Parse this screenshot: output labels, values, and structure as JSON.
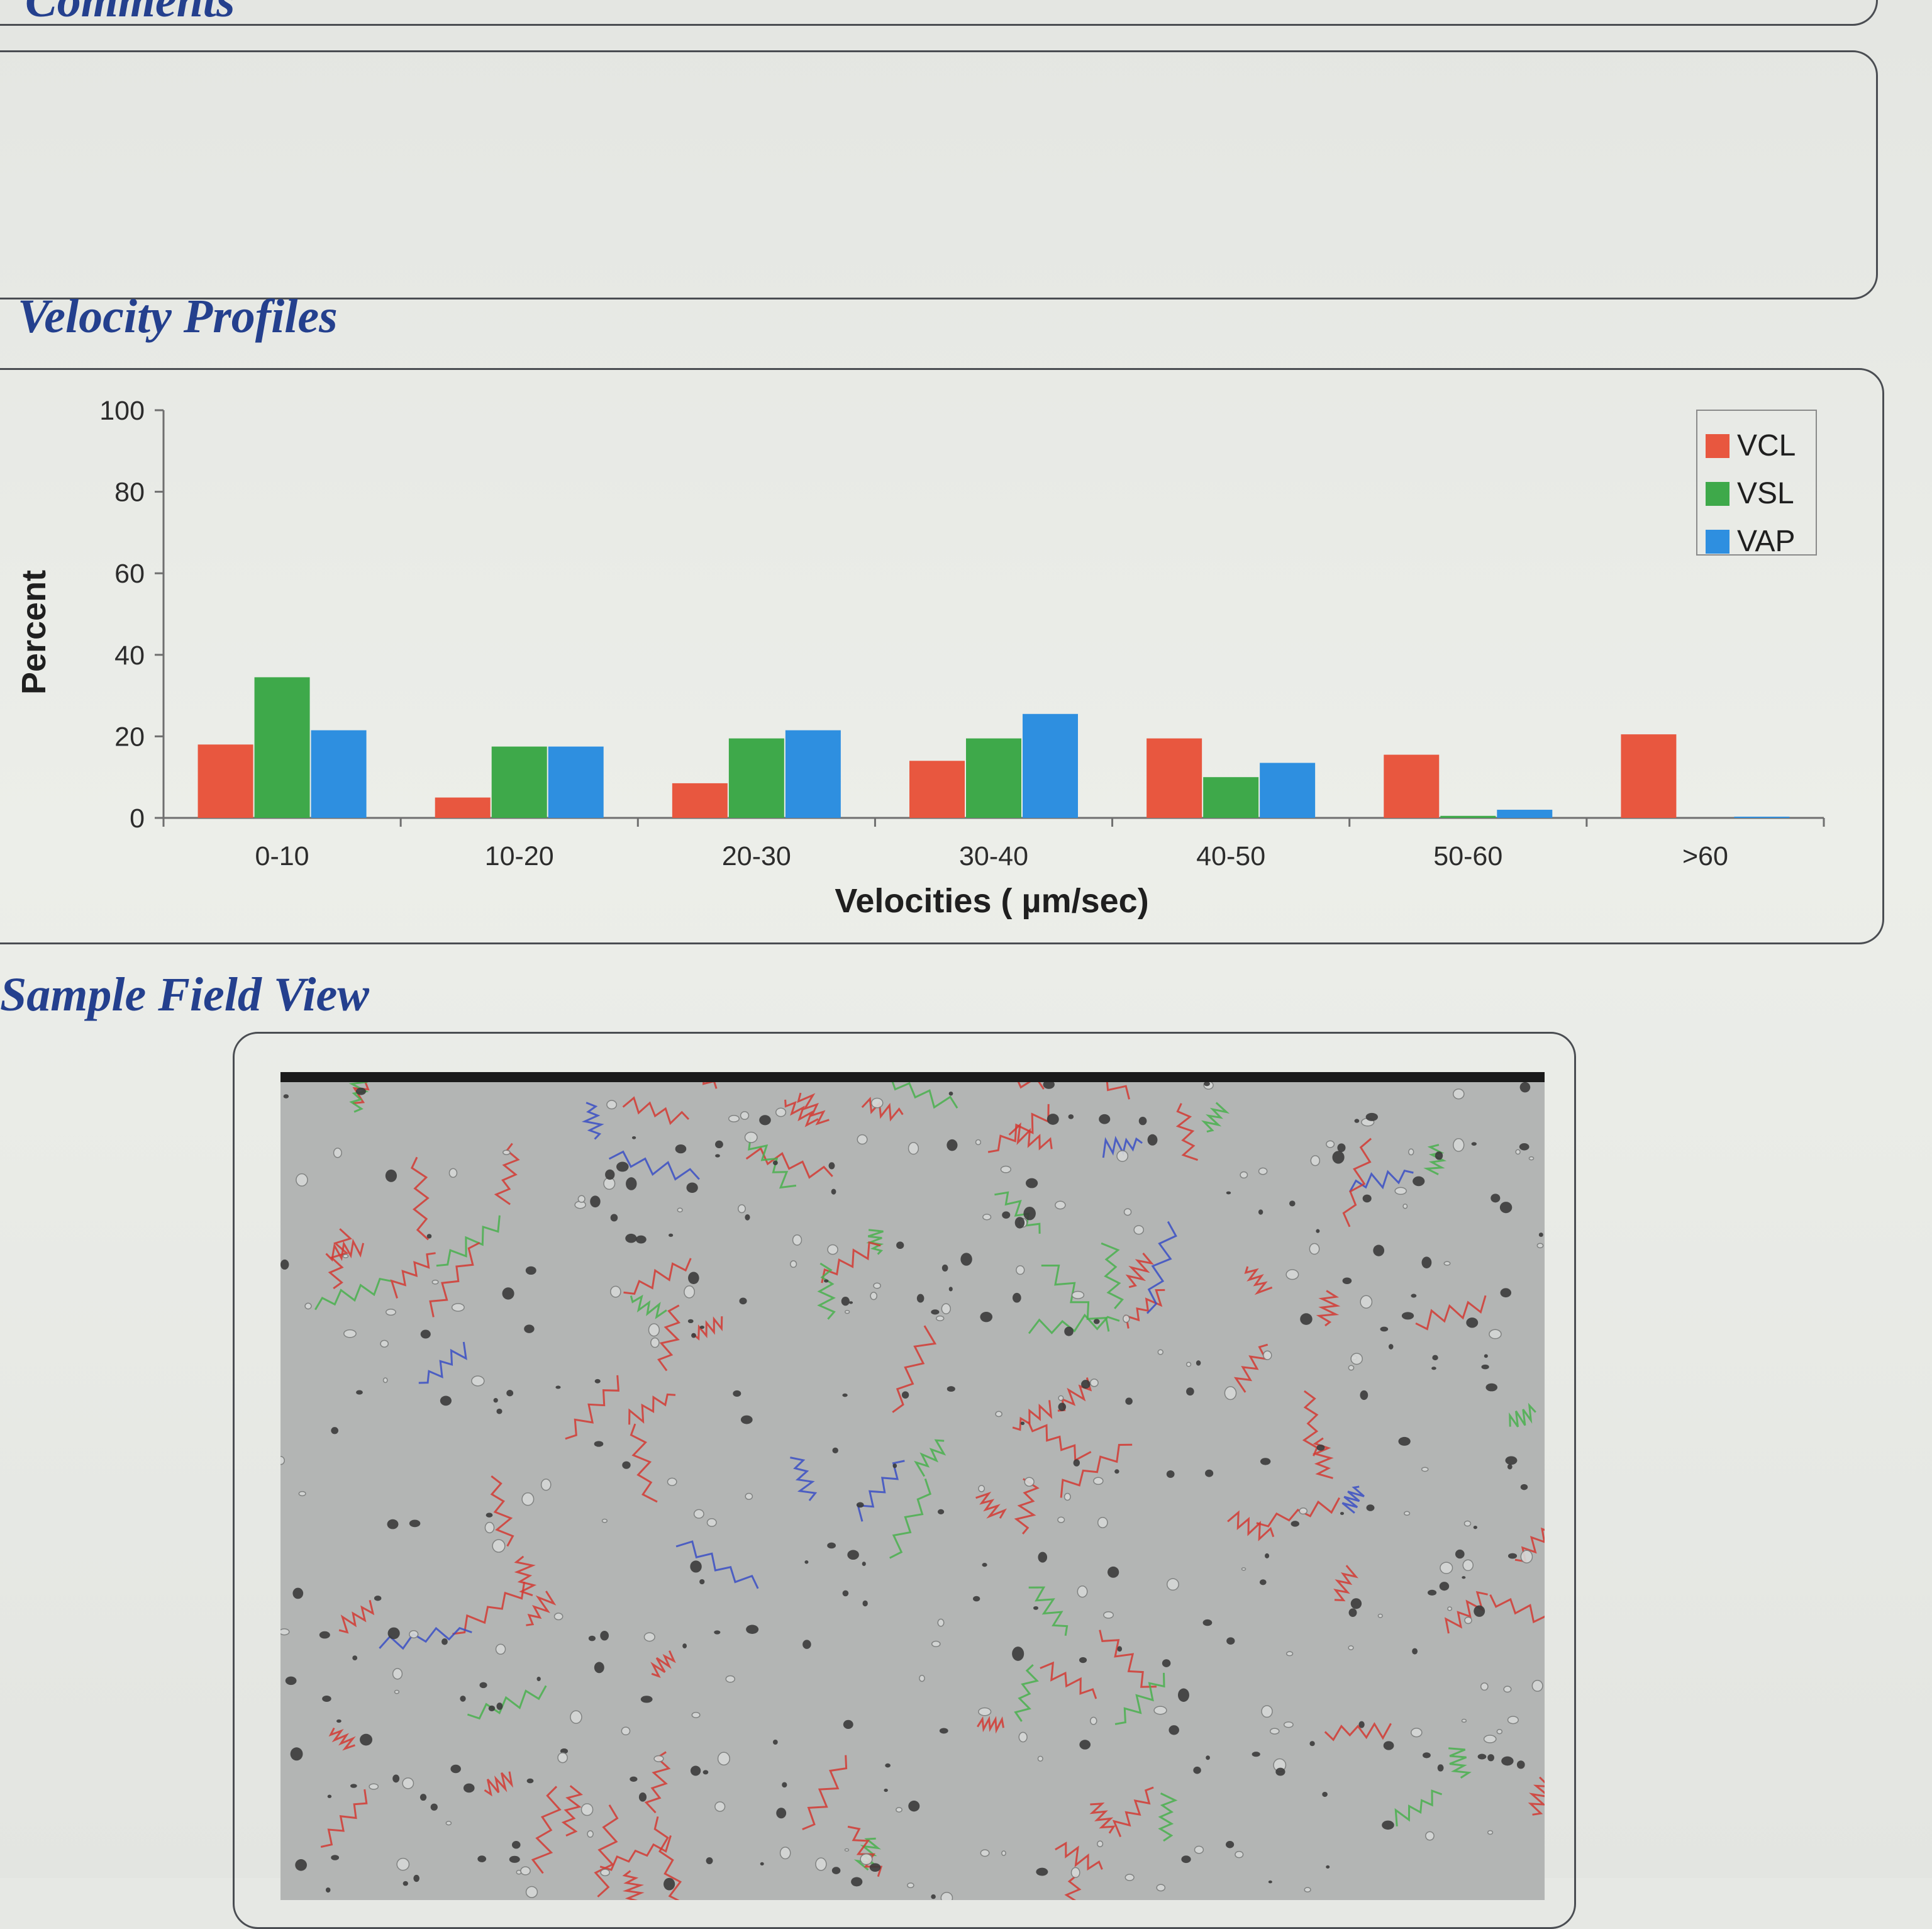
{
  "sections": {
    "comments_heading": "Comments",
    "velocity_heading": "Velocity Profiles",
    "field_heading": "Sample Field View"
  },
  "chart_data": {
    "type": "bar",
    "title": "",
    "xlabel": "Velocities ( µm/sec)",
    "ylabel": "Percent",
    "ylim": [
      0,
      100
    ],
    "yticks": [
      0,
      20,
      40,
      60,
      80,
      100
    ],
    "categories": [
      "0-10",
      "10-20",
      "20-30",
      "30-40",
      "40-50",
      "50-60",
      ">60"
    ],
    "series": [
      {
        "name": "VCL",
        "color": "#e8573f",
        "values": [
          18,
          5,
          8.5,
          14,
          19.5,
          15.5,
          20.5
        ]
      },
      {
        "name": "VSL",
        "color": "#3ea94a",
        "values": [
          34.5,
          17.5,
          19.5,
          19.5,
          10,
          0.5,
          0
        ]
      },
      {
        "name": "VAP",
        "color": "#2e8fe0",
        "values": [
          21.5,
          17.5,
          21.5,
          25.5,
          13.5,
          2,
          0.3
        ]
      }
    ],
    "grid": false,
    "legend_position": "top-right"
  },
  "field_view": {
    "description_icon": "microscope-field-image"
  }
}
